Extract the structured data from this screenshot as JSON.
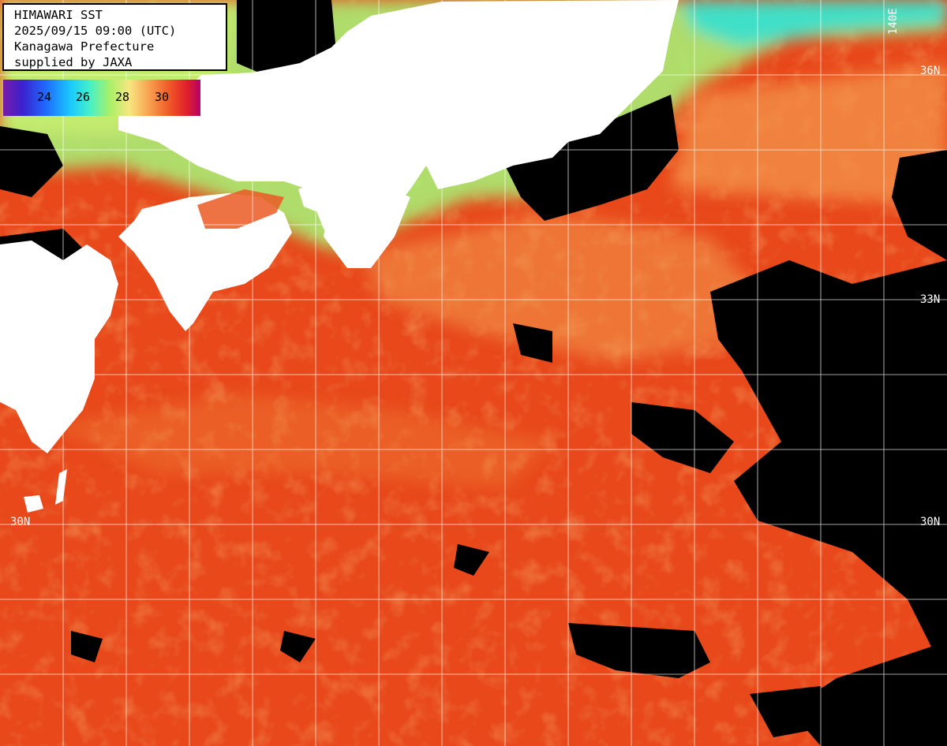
{
  "header": {
    "title": "HIMAWARI SST",
    "timestamp": "2025/09/15 09:00 (UTC)",
    "region": "Kanagawa Prefecture",
    "credit": "supplied by JAXA"
  },
  "color_scale": {
    "ticks": [
      "24",
      "26",
      "28",
      "30"
    ]
  },
  "grid_labels": {
    "lat_36": "36N",
    "lat_33_right": "33N",
    "lat_30_left": "30N",
    "lat_30_right": "30N",
    "lon_140": "140E"
  },
  "colors": {
    "land": "#ffffff",
    "cloud": "#000000",
    "warm_sea": "#ea4a18",
    "cool_sea": "#f49a40",
    "coastal_green": "#9ee878",
    "cyan_water": "#40e0c8",
    "grid": "#ffffff"
  }
}
